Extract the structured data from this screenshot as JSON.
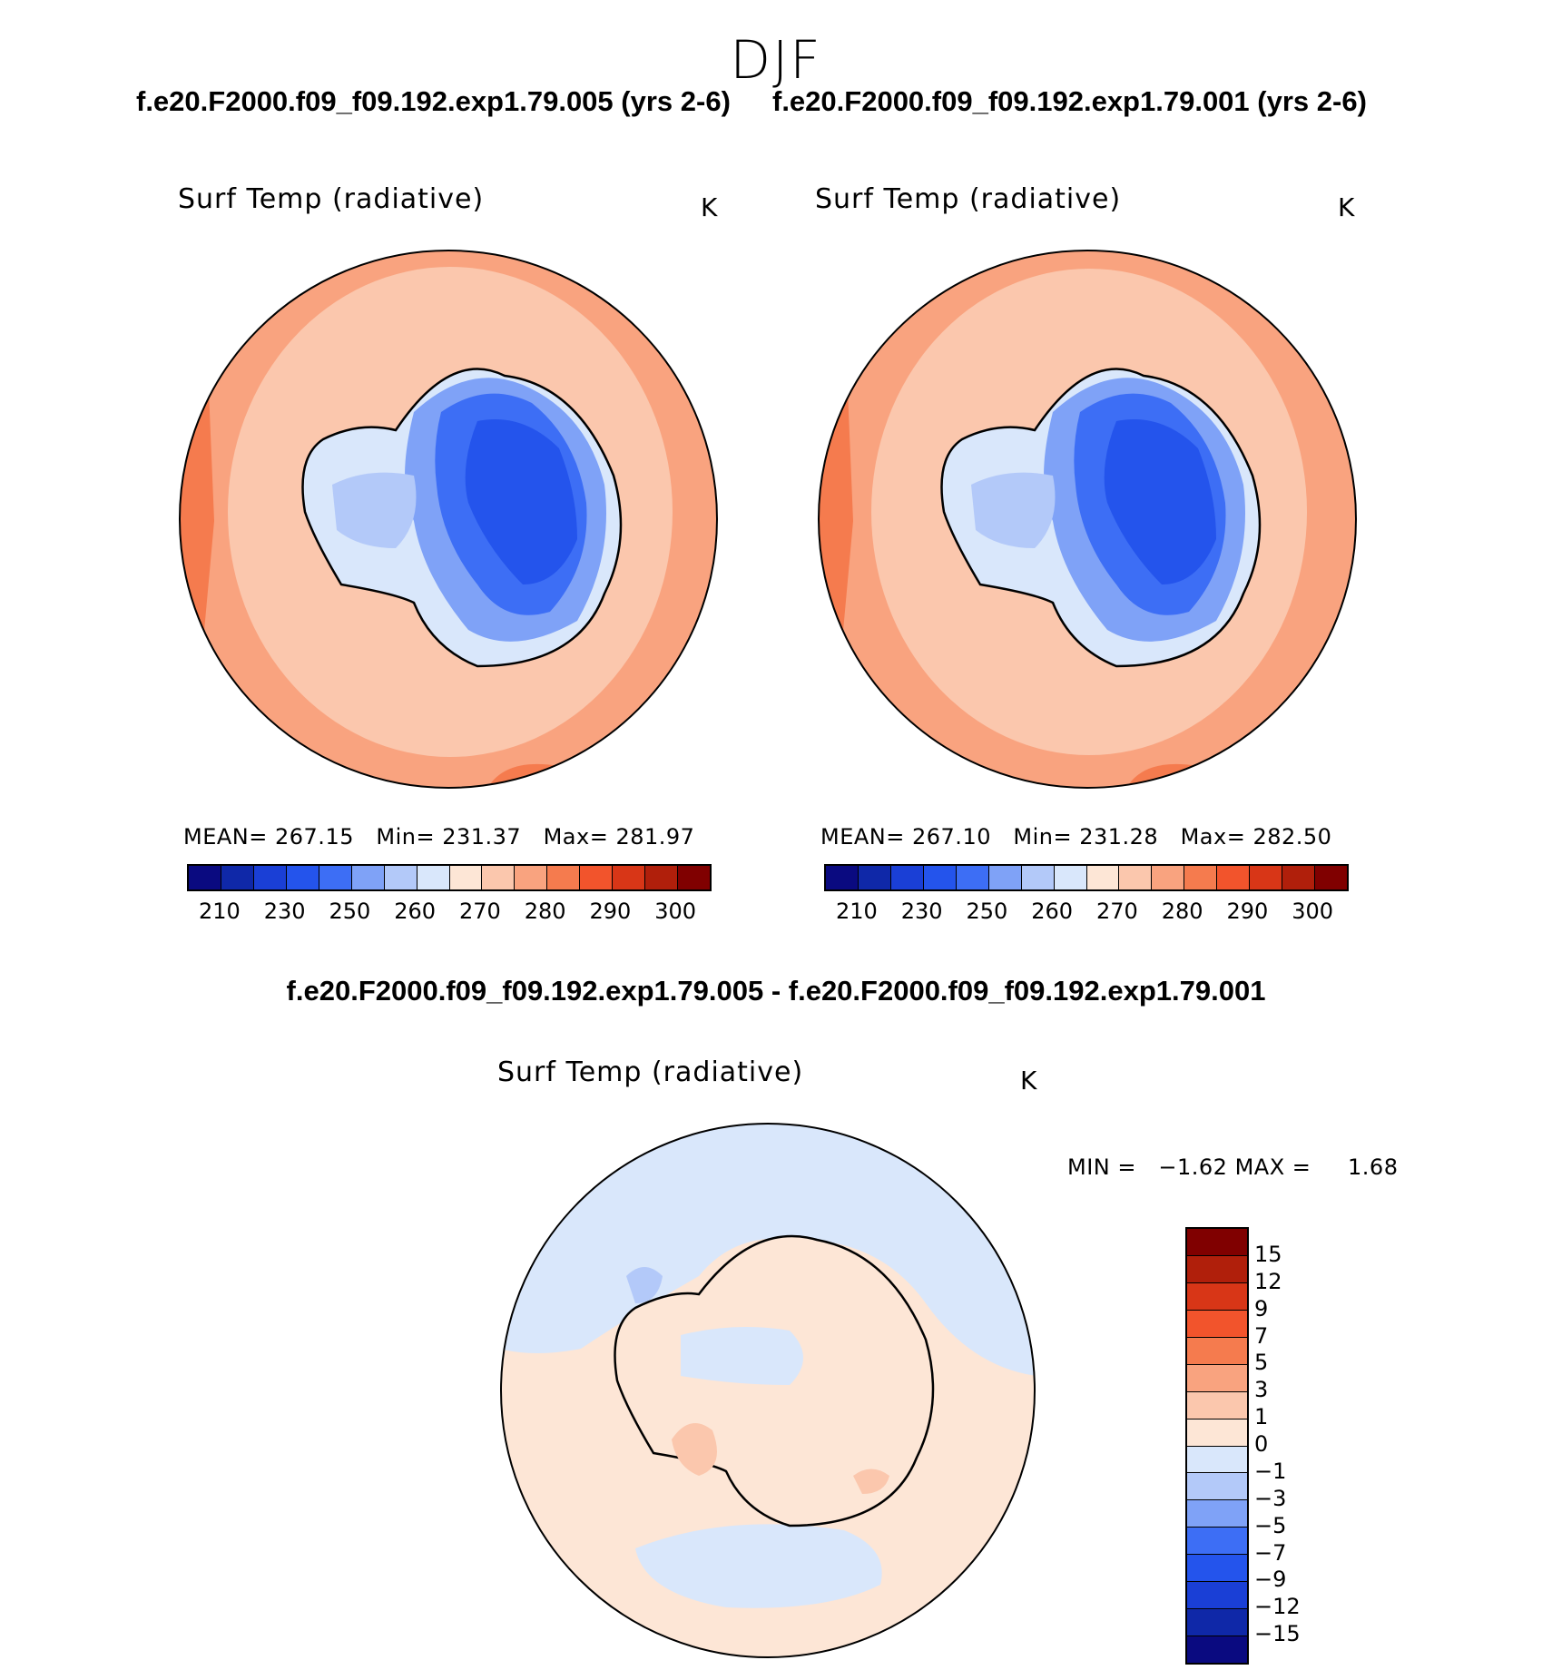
{
  "season": "DJF",
  "top_titles": {
    "left": "f.e20.F2000.f09_f09.192.exp1.79.005 (yrs 2-6)",
    "right": "f.e20.F2000.f09_f09.192.exp1.79.001 (yrs 2-6)"
  },
  "diff_title": "f.e20.F2000.f09_f09.192.exp1.79.005 - f.e20.F2000.f09_f09.192.exp1.79.001",
  "panels": {
    "left": {
      "variable": "Surf Temp (radiative)",
      "units": "K",
      "stats": {
        "mean_label": "MEAN=",
        "mean": "267.15",
        "min_label": "Min=",
        "min": "231.37",
        "max_label": "Max=",
        "max": "281.97"
      }
    },
    "right": {
      "variable": "Surf Temp (radiative)",
      "units": "K",
      "stats": {
        "mean_label": "MEAN=",
        "mean": "267.10",
        "min_label": "Min=",
        "min": "231.28",
        "max_label": "Max=",
        "max": "282.50"
      }
    },
    "diff": {
      "variable": "Surf Temp (radiative)",
      "units": "K",
      "stats": {
        "min_label": "MIN =",
        "min": "−1.62",
        "max_label": "MAX =",
        "max": "1.68"
      }
    }
  },
  "colorbar_abs": {
    "colors": [
      "#0a0a80",
      "#0f28a8",
      "#1a3fd6",
      "#2454ec",
      "#3d6ef5",
      "#7fa2f7",
      "#b3c9f9",
      "#d9e7fb",
      "#fde6d6",
      "#fbc7ad",
      "#f9a37f",
      "#f57b4e",
      "#f2542c",
      "#d83617",
      "#b01f0b",
      "#800000"
    ],
    "tick_labels": [
      "210",
      "230",
      "250",
      "260",
      "270",
      "280",
      "290",
      "300"
    ]
  },
  "colorbar_diff": {
    "colors": [
      "#800000",
      "#b01f0b",
      "#d83617",
      "#f2542c",
      "#f57b4e",
      "#f9a37f",
      "#fbc7ad",
      "#fde6d6",
      "#d9e7fb",
      "#b3c9f9",
      "#7fa2f7",
      "#3d6ef5",
      "#2454ec",
      "#1a3fd6",
      "#0f28a8",
      "#0a0a80"
    ],
    "labels": [
      "15",
      "12",
      "9",
      "7",
      "5",
      "3",
      "1",
      "0",
      "−1",
      "−3",
      "−5",
      "−7",
      "−9",
      "−12",
      "−15"
    ]
  }
}
